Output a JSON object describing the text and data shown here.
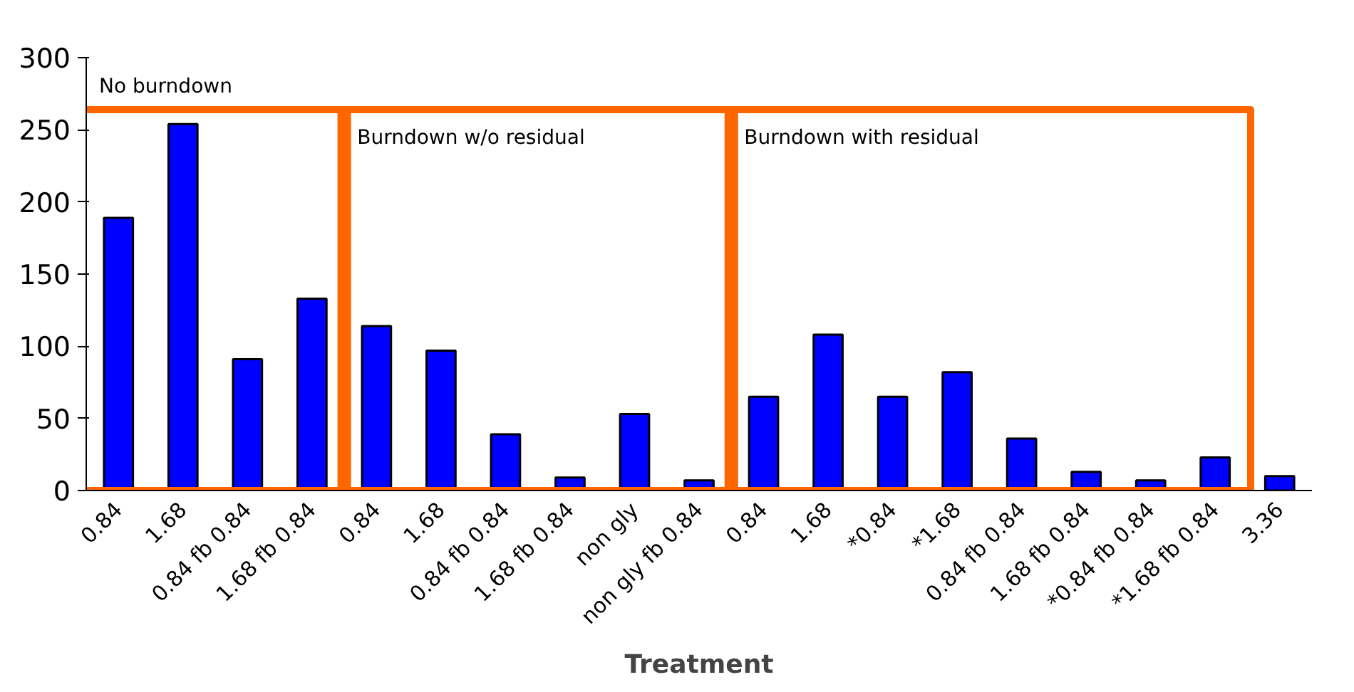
{
  "chart_data": {
    "type": "bar",
    "xlabel": "Treatment",
    "categories": [
      "0.84",
      "1.68",
      "0.84 fb 0.84",
      "1.68 fb 0.84",
      "0.84",
      "1.68",
      "0.84 fb 0.84",
      "1.68 fb 0.84",
      "non gly",
      "non gly fb 0.84",
      "0.84",
      "1.68",
      "*0.84",
      "*1.68",
      "0.84 fb 0.84",
      "1.68 fb 0.84",
      "*0.84 fb 0.84",
      "*1.68 fb 0.84",
      "3.36"
    ],
    "values": [
      189,
      254,
      91,
      133,
      114,
      97,
      39,
      9,
      53,
      7,
      65,
      108,
      65,
      82,
      36,
      13,
      7,
      23,
      10
    ],
    "color": "#0000ff",
    "ylim": [
      0,
      300
    ],
    "yticks": [
      0,
      50,
      100,
      150,
      200,
      250,
      300
    ],
    "grid": false,
    "annotations": [
      "No burndown",
      "Burndown w/o residual",
      "Burndown with residual"
    ]
  }
}
